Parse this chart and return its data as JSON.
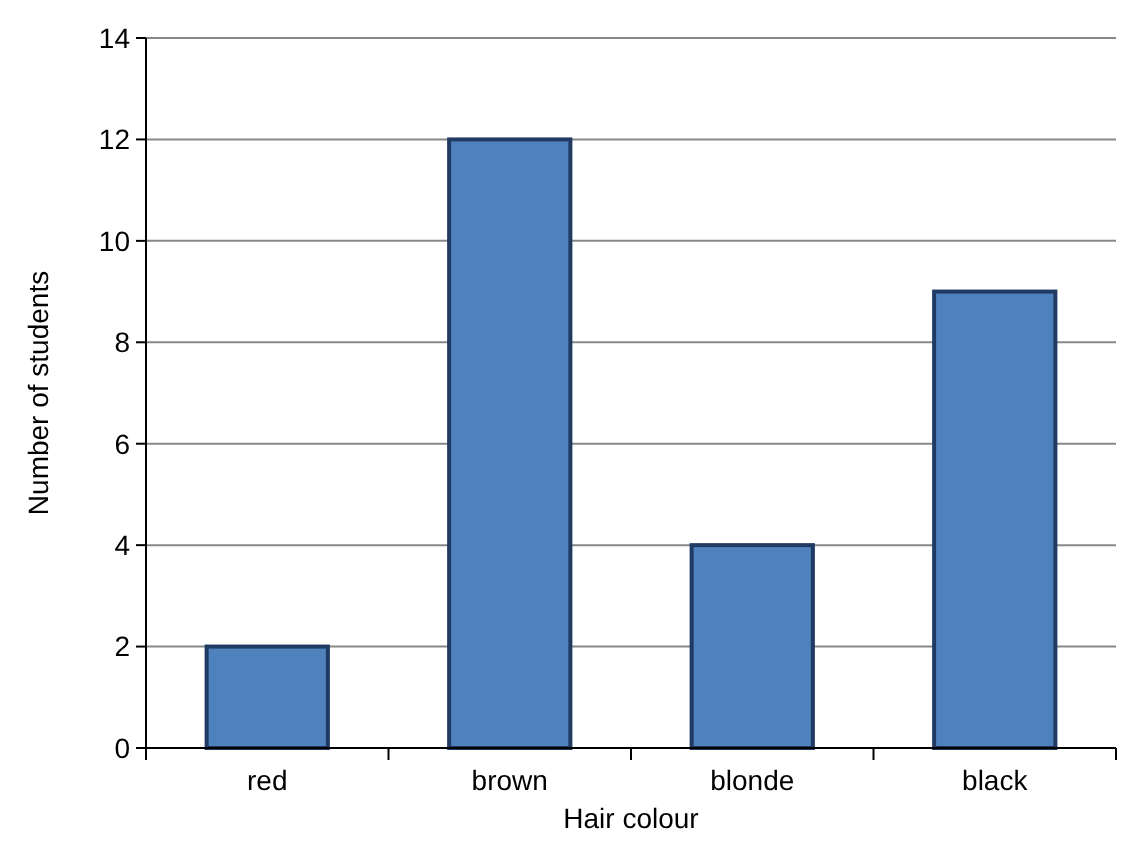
{
  "chart_data": {
    "type": "bar",
    "xlabel": "Hair colour",
    "ylabel": "Number of students",
    "categories": [
      "red",
      "brown",
      "blonde",
      "black"
    ],
    "values": [
      2,
      12,
      4,
      9
    ],
    "color": "#4f81bd",
    "ylim": [
      0,
      14
    ],
    "yticks": [
      0,
      2,
      4,
      6,
      8,
      10,
      12,
      14
    ],
    "grid": "y"
  }
}
